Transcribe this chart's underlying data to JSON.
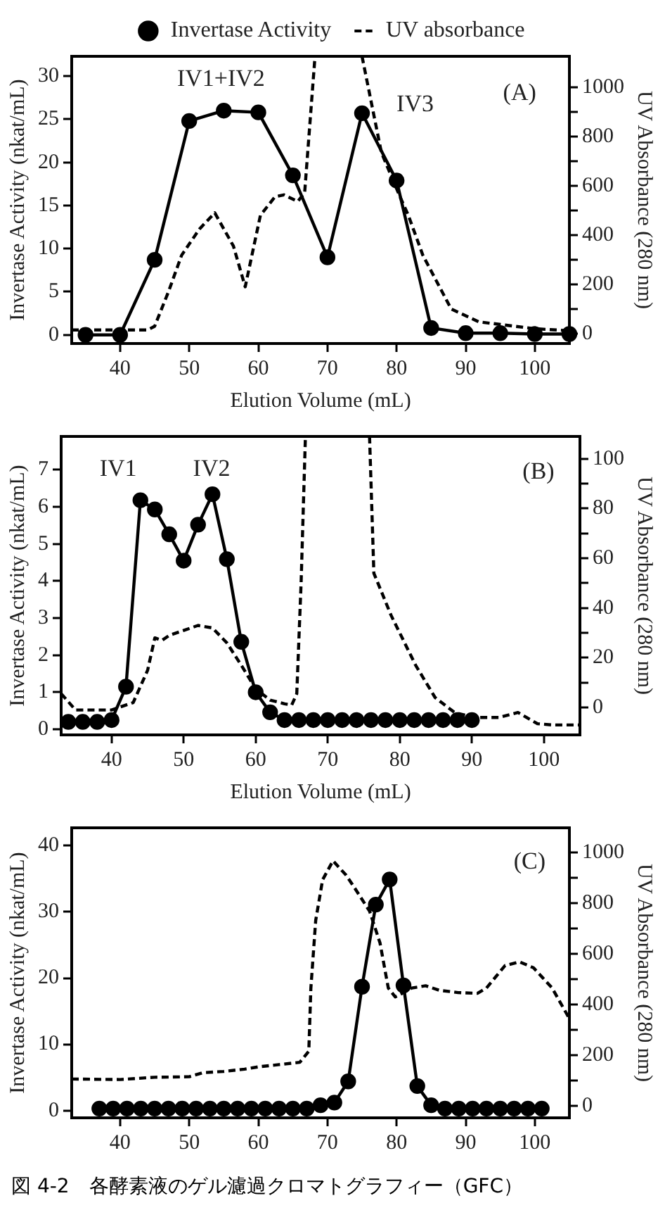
{
  "chart_data": [
    {
      "type": "line",
      "xlabel": "Elution Volume (mL)",
      "ylabel": "Invertase Activity (nkat/mL)",
      "y2label": "UV Absorbance (280 nm)",
      "legend": "top",
      "marker": "circle",
      "line_style": "solid",
      "grid": false,
      "xlim": [
        33,
        105
      ],
      "xticks": [
        40,
        50,
        60,
        70,
        80,
        90,
        100
      ],
      "ylim": [
        -1,
        32.3
      ],
      "yticks": [
        0,
        5,
        10,
        15,
        20,
        25,
        30
      ],
      "y2lim": [
        -40,
        1125
      ],
      "y2ticks": [
        0,
        {
          "value": 100,
          "label": null
        },
        200,
        {
          "value": 300,
          "label": null
        },
        400,
        {
          "value": 500,
          "label": null
        },
        600,
        {
          "value": 700,
          "label": null
        },
        800,
        {
          "value": 900,
          "label": null
        },
        1000
      ],
      "annotations": [
        "(A)",
        "IV1+IV2",
        "IV3"
      ],
      "series": [
        {
          "name": "Invertase Activity",
          "color": "#000000",
          "x": [
            35,
            40,
            45,
            50,
            55,
            60,
            65,
            70,
            75,
            80,
            85,
            90,
            95,
            100,
            105
          ],
          "values": [
            0,
            0,
            8.7,
            24.8,
            26,
            25.8,
            18.5,
            9,
            25.7,
            17.9,
            0.8,
            0.2,
            0.2,
            0.1,
            0.1
          ]
        },
        {
          "name": "UV absorbance",
          "color": "#000000",
          "axis": "y2",
          "marker": "none",
          "line_style": "dashed",
          "x": [
            33,
            40,
            44,
            45,
            47,
            48.9,
            51.5,
            53.7,
            56.4,
            58.1,
            60.3,
            62.4,
            63.7,
            65.7,
            66.7,
            68.2,
            71,
            75,
            77.8,
            80.5,
            81.7,
            83.8,
            87.9,
            91.9,
            100,
            105
          ],
          "values": [
            15,
            15,
            15,
            30,
            170,
            318,
            425,
            490,
            355,
            190,
            480,
            555,
            563,
            536,
            572,
            1125,
            null,
            1125,
            735,
            555,
            480,
            318,
            100,
            48,
            20,
            12
          ]
        }
      ]
    },
    {
      "type": "line",
      "xlabel": "Elution Volume (mL)",
      "ylabel": "Invertase Activity (nkat/mL)",
      "y2label": "UV Absorbance (280 nm)",
      "marker": "circle",
      "line_style": "solid",
      "grid": false,
      "xlim": [
        33,
        105
      ],
      "xticks": [
        40,
        50,
        60,
        70,
        80,
        90,
        100
      ],
      "ylim": [
        -0.15,
        7.9
      ],
      "yticks": [
        0,
        1,
        2,
        3,
        4,
        5,
        6,
        7
      ],
      "y2lim": [
        -11,
        109
      ],
      "y2ticks": [
        0,
        {
          "value": 10,
          "label": null
        },
        20,
        {
          "value": 30,
          "label": null
        },
        40,
        {
          "value": 50,
          "label": null
        },
        60,
        {
          "value": 70,
          "label": null
        },
        80,
        {
          "value": 90,
          "label": null
        },
        100
      ],
      "annotations": [
        "(B)",
        "IV1",
        "IV2"
      ],
      "series": [
        {
          "color": "#000000",
          "x": [
            34,
            36,
            38,
            40,
            42,
            44,
            46,
            48,
            50,
            52,
            54,
            56,
            58,
            60,
            62,
            64,
            66,
            68,
            70,
            72,
            74,
            76,
            78,
            80,
            82,
            84,
            86,
            88,
            90
          ],
          "values": [
            0.2,
            0.2,
            0.2,
            0.25,
            1.15,
            6.18,
            5.93,
            5.26,
            4.55,
            5.52,
            6.34,
            4.59,
            2.36,
            1,
            0.46,
            0.25,
            0.25,
            0.25,
            0.25,
            0.25,
            0.25,
            0.25,
            0.25,
            0.25,
            0.25,
            0.25,
            0.25,
            0.25,
            0.25
          ]
        },
        {
          "color": "#000000",
          "axis": "y2",
          "marker": "none",
          "line_style": "dashed",
          "x": [
            33,
            35,
            40,
            43,
            45,
            46,
            47,
            48,
            50,
            52,
            54,
            56,
            58,
            60,
            62,
            64,
            65,
            65.7,
            66.3,
            66.9,
            70,
            75.8,
            76.4,
            78.8,
            82.2,
            84.9,
            87.6,
            90.3,
            93.7,
            96.4,
            99.1,
            101.2,
            105
          ],
          "values": [
            5.6,
            -1,
            -1,
            2,
            15,
            28,
            27,
            29,
            31,
            33,
            32,
            26,
            17,
            7.5,
            3,
            1.5,
            1,
            5.6,
            50,
            109,
            null,
            109,
            54,
            37,
            17,
            4,
            -2,
            -4,
            -4,
            -2,
            -6.5,
            -7,
            -7
          ]
        }
      ]
    },
    {
      "type": "line",
      "ylabel": "Invertase Activity (nkat/mL)",
      "y2label": "UV Absorbance (280 nm)",
      "marker": "circle",
      "line_style": "solid",
      "grid": false,
      "xlim": [
        33,
        105
      ],
      "xticks": [
        40,
        50,
        60,
        70,
        80,
        90,
        100
      ],
      "ylim": [
        -1.1,
        42.7
      ],
      "yticks": [
        0,
        10,
        20,
        30,
        40
      ],
      "y2lim": [
        -46,
        1098
      ],
      "y2ticks": [
        0,
        {
          "value": 100,
          "label": null
        },
        200,
        {
          "value": 300,
          "label": null
        },
        400,
        {
          "value": 500,
          "label": null
        },
        600,
        {
          "value": 700,
          "label": null
        },
        800,
        {
          "value": 900,
          "label": null
        },
        1000
      ],
      "annotations": [
        "(C)",
        "図 4-2　各酵素液のゲル濾過クロマトグラフィー（GFC）"
      ],
      "series": [
        {
          "color": "#000000",
          "x": [
            37,
            39,
            41,
            43,
            45,
            47,
            49,
            51,
            53,
            55,
            57,
            59,
            61,
            63,
            65,
            67,
            69,
            71,
            73,
            75,
            77,
            79,
            81,
            83,
            85,
            87,
            89,
            91,
            93,
            95,
            97,
            99,
            101
          ],
          "values": [
            0.3,
            0.3,
            0.3,
            0.3,
            0.3,
            0.3,
            0.3,
            0.3,
            0.3,
            0.3,
            0.3,
            0.3,
            0.3,
            0.3,
            0.3,
            0.3,
            0.8,
            1.2,
            4.4,
            18.7,
            31.1,
            34.9,
            18.9,
            3.7,
            0.8,
            0.3,
            0.3,
            0.3,
            0.3,
            0.3,
            0.3,
            0.3,
            0.3
          ]
        },
        {
          "color": "#000000",
          "axis": "y2",
          "marker": "none",
          "line_style": "dashed",
          "x": [
            33,
            40,
            45,
            50,
            52,
            55,
            58,
            60,
            63,
            66,
            67.3,
            67.6,
            68.3,
            69.3,
            70.8,
            72.7,
            74,
            76.1,
            77.6,
            78.8,
            79.8,
            80.8,
            82.2,
            84.2,
            86.2,
            88.9,
            91.7,
            93,
            95.7,
            97.8,
            99.8,
            102.5,
            104.9
          ],
          "values": [
            107,
            105,
            114,
            116,
            132,
            137,
            146,
            155,
            164,
            173,
            217,
            466,
            733,
            893,
            968,
            911,
            858,
            769,
            644,
            466,
            431,
            445,
            466,
            475,
            457,
            448,
            445,
            466,
            555,
            569,
            546,
            466,
            350
          ]
        }
      ]
    }
  ]
}
